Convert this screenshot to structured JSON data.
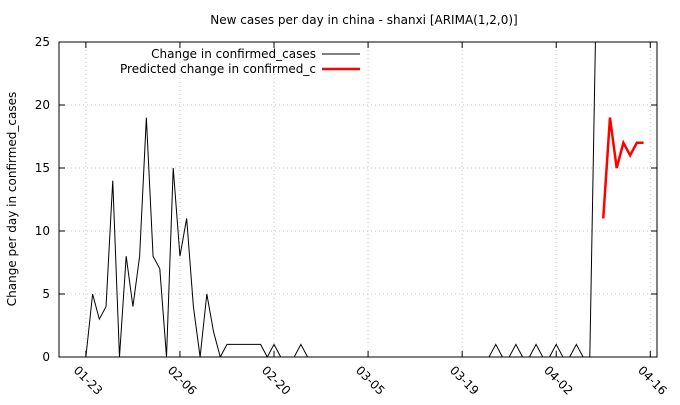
{
  "chart_data": {
    "type": "line",
    "title": "New cases per day in china - shanxi [ARIMA(1,2,0)]",
    "xlabel": "",
    "ylabel": "Change per day in confirmed_cases",
    "ylim": [
      0,
      25
    ],
    "yticks": [
      0,
      5,
      10,
      15,
      20,
      25
    ],
    "x_axis": "date",
    "xlim": [
      "2020-01-19",
      "2020-04-17"
    ],
    "xticks": [
      "01-23",
      "02-06",
      "02-20",
      "03-05",
      "03-19",
      "04-02",
      "04-16"
    ],
    "xtick_dates": [
      "2020-01-23",
      "2020-02-06",
      "2020-02-20",
      "2020-03-05",
      "2020-03-19",
      "2020-04-02",
      "2020-04-16"
    ],
    "grid": true,
    "legend_position": "top-left",
    "series": [
      {
        "name": "Change in confirmed_cases",
        "color": "#000000",
        "points": [
          [
            "2020-01-22",
            0
          ],
          [
            "2020-01-23",
            0
          ],
          [
            "2020-01-24",
            5
          ],
          [
            "2020-01-25",
            3
          ],
          [
            "2020-01-26",
            4
          ],
          [
            "2020-01-27",
            14
          ],
          [
            "2020-01-28",
            0
          ],
          [
            "2020-01-29",
            8
          ],
          [
            "2020-01-30",
            4
          ],
          [
            "2020-01-31",
            8
          ],
          [
            "2020-02-01",
            19
          ],
          [
            "2020-02-02",
            8
          ],
          [
            "2020-02-03",
            7
          ],
          [
            "2020-02-04",
            0
          ],
          [
            "2020-02-05",
            15
          ],
          [
            "2020-02-06",
            8
          ],
          [
            "2020-02-07",
            11
          ],
          [
            "2020-02-08",
            4
          ],
          [
            "2020-02-09",
            0
          ],
          [
            "2020-02-10",
            5
          ],
          [
            "2020-02-11",
            2
          ],
          [
            "2020-02-12",
            0
          ],
          [
            "2020-02-13",
            1
          ],
          [
            "2020-02-14",
            1
          ],
          [
            "2020-02-15",
            1
          ],
          [
            "2020-02-16",
            1
          ],
          [
            "2020-02-17",
            1
          ],
          [
            "2020-02-18",
            1
          ],
          [
            "2020-02-19",
            0
          ],
          [
            "2020-02-20",
            1
          ],
          [
            "2020-02-21",
            0
          ],
          [
            "2020-02-22",
            0
          ],
          [
            "2020-02-23",
            0
          ],
          [
            "2020-02-24",
            1
          ],
          [
            "2020-02-25",
            0
          ],
          [
            "2020-02-26",
            0
          ],
          [
            "2020-02-27",
            0
          ],
          [
            "2020-02-28",
            0
          ],
          [
            "2020-02-29",
            0
          ],
          [
            "2020-03-01",
            0
          ],
          [
            "2020-03-02",
            0
          ],
          [
            "2020-03-03",
            0
          ],
          [
            "2020-03-04",
            0
          ],
          [
            "2020-03-05",
            0
          ],
          [
            "2020-03-06",
            0
          ],
          [
            "2020-03-07",
            0
          ],
          [
            "2020-03-08",
            0
          ],
          [
            "2020-03-09",
            0
          ],
          [
            "2020-03-10",
            0
          ],
          [
            "2020-03-11",
            0
          ],
          [
            "2020-03-12",
            0
          ],
          [
            "2020-03-13",
            0
          ],
          [
            "2020-03-14",
            0
          ],
          [
            "2020-03-15",
            0
          ],
          [
            "2020-03-16",
            0
          ],
          [
            "2020-03-17",
            0
          ],
          [
            "2020-03-18",
            0
          ],
          [
            "2020-03-19",
            0
          ],
          [
            "2020-03-20",
            0
          ],
          [
            "2020-03-21",
            0
          ],
          [
            "2020-03-22",
            0
          ],
          [
            "2020-03-23",
            0
          ],
          [
            "2020-03-24",
            1
          ],
          [
            "2020-03-25",
            0
          ],
          [
            "2020-03-26",
            0
          ],
          [
            "2020-03-27",
            1
          ],
          [
            "2020-03-28",
            0
          ],
          [
            "2020-03-29",
            0
          ],
          [
            "2020-03-30",
            1
          ],
          [
            "2020-03-31",
            0
          ],
          [
            "2020-04-01",
            0
          ],
          [
            "2020-04-02",
            1
          ],
          [
            "2020-04-03",
            0
          ],
          [
            "2020-04-04",
            0
          ],
          [
            "2020-04-05",
            1
          ],
          [
            "2020-04-06",
            0
          ],
          [
            "2020-04-07",
            0
          ],
          [
            "2020-04-08",
            30
          ]
        ]
      },
      {
        "name": "Predicted change in confirmed_c",
        "color": "#ff0000",
        "points": [
          [
            "2020-04-09",
            11
          ],
          [
            "2020-04-10",
            19
          ],
          [
            "2020-04-11",
            15
          ],
          [
            "2020-04-12",
            17
          ],
          [
            "2020-04-13",
            16
          ],
          [
            "2020-04-14",
            17
          ],
          [
            "2020-04-15",
            17
          ]
        ]
      }
    ]
  }
}
